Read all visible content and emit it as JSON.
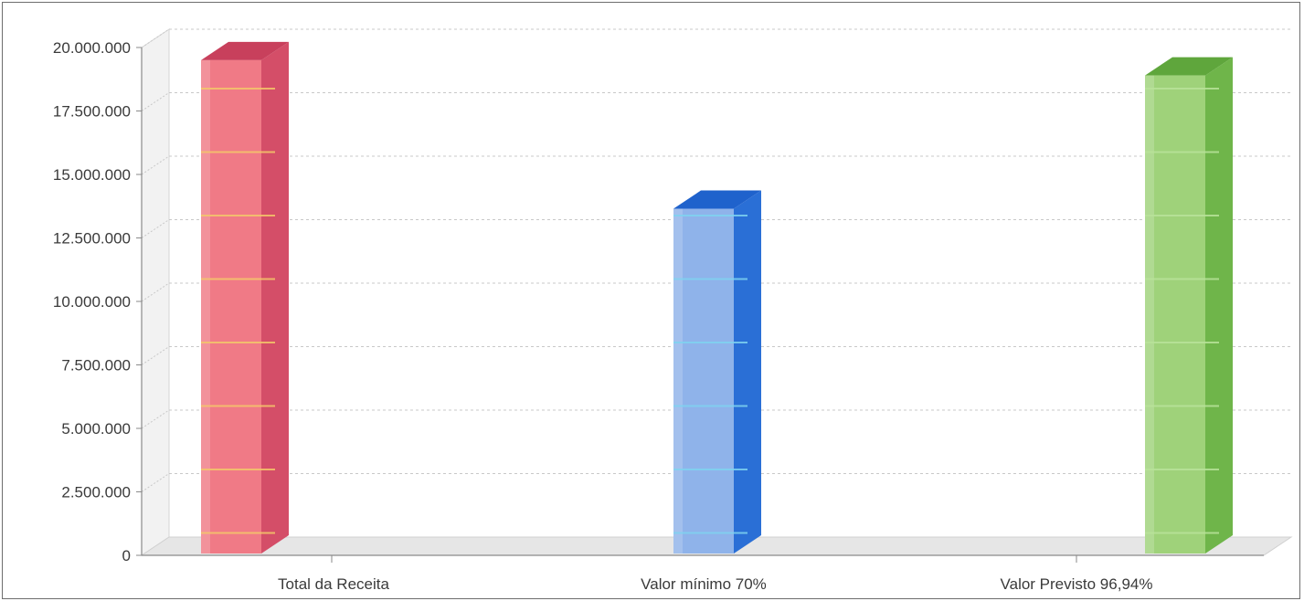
{
  "chart_data": {
    "type": "bar",
    "title": "",
    "xlabel": "",
    "ylabel": "",
    "categories": [
      "Total da Receita",
      "Valor mínimo 70%",
      "Valor Previsto 96,94%"
    ],
    "values": [
      19500000,
      13650000,
      18900000
    ],
    "ylim": [
      0,
      20000000
    ],
    "yticks": [
      0,
      2500000,
      5000000,
      7500000,
      10000000,
      12500000,
      15000000,
      17500000,
      20000000
    ],
    "ytick_labels": [
      "0",
      "2.500.000",
      "5.000.000",
      "7.500.000",
      "10.000.000",
      "12.500.000",
      "15.000.000",
      "17.500.000",
      "20.000.000"
    ],
    "grid": true,
    "style": "3d-bar",
    "legend": "none"
  },
  "colors": {
    "bar_front": [
      "#f07a86",
      "#8fb3ea",
      "#9fd27a"
    ],
    "bar_side": [
      "#d44e68",
      "#2a6fd6",
      "#6fb54a"
    ],
    "bar_top": [
      "#c8405c",
      "#1f62cc",
      "#5fa63c"
    ],
    "stripe": [
      "#f4c86a",
      "#7fd3f0",
      "#b9e39a"
    ],
    "grid": "#c8c8c8",
    "axis": "#8a8a8a",
    "floor": "#e6e6e6",
    "wall": "#f2f2f2"
  }
}
